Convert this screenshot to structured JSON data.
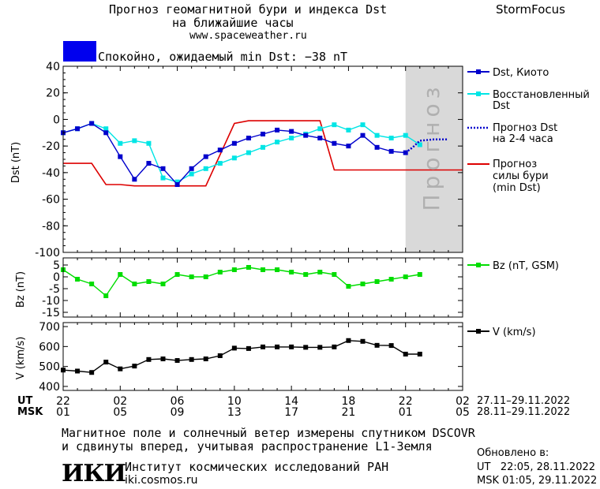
{
  "header": {
    "title_line1": "Прогноз геомагнитной бури и индекса Dst",
    "title_line2": "на ближайшие часы",
    "url": "www.spaceweather.ru",
    "brand": "StormFocus"
  },
  "status": {
    "text": "Спокойно, ожидаемый min Dst: −38 nT",
    "color": "#0000ee"
  },
  "legend": {
    "dst_kyoto": "Dst, Киото",
    "restored_l1": "Восстановленный",
    "restored_l2": "Dst",
    "forecast_l1": "Прогноз Dst",
    "forecast_l2": "на 2-4 часа",
    "storm_l1": "Прогноз",
    "storm_l2": "силы бури",
    "storm_l3": "(min Dst)",
    "bz": "Bz (nT, GSM)",
    "v": "V (km/s)"
  },
  "forecast_label": "Прогноз",
  "axes": {
    "dst_ylabel": "Dst (nT)",
    "bz_ylabel": "Bz (nT)",
    "v_ylabel": "V (km/s)",
    "dst_ticks": [
      40,
      20,
      0,
      -20,
      -40,
      -60,
      -80,
      -100
    ],
    "bz_ticks": [
      5,
      0,
      -5,
      -10,
      -15
    ],
    "v_ticks": [
      700,
      600,
      500,
      400
    ],
    "ut_label": "UT",
    "msk_label": "MSK",
    "ut_ticks": [
      "22",
      "02",
      "06",
      "10",
      "14",
      "18",
      "22",
      "02"
    ],
    "msk_ticks": [
      "01",
      "05",
      "09",
      "13",
      "17",
      "21",
      "01",
      "05"
    ],
    "ut_range": "27.11–29.11.2022",
    "msk_range": "28.11–29.11.2022"
  },
  "footer": {
    "note_line1": "Магнитное поле и солнечный ветер измерены спутником DSCOVR",
    "note_line2": "и сдвинуты вперед, учитывая распространение L1-Земля",
    "logo": "ИКИ",
    "institute": "Институт космических исследований РАН",
    "site": "iki.cosmos.ru",
    "updated_label": "Обновлено в:",
    "updated_ut": "UT   22:05, 28.11.2022",
    "updated_msk": "MSK 01:05, 29.11.2022"
  },
  "chart_data": {
    "type": "line",
    "x_unit": "hours since 22 UT",
    "x_range": [
      0,
      28
    ],
    "forecast_start": 24,
    "dst_ylim": [
      -100,
      40
    ],
    "bz_ylim": [
      -17,
      8
    ],
    "v_ylim": [
      380,
      720
    ],
    "colors": {
      "dst_kyoto": "#0000cc",
      "restored": "#00e5e5",
      "forecast": "#0000cc",
      "storm": "#dd0000",
      "bz": "#00dd00",
      "v": "#000000",
      "forecast_bg": "#d9d9d9"
    },
    "series": [
      {
        "name": "Dst, Киото",
        "x": [
          0,
          1,
          2,
          3,
          4,
          5,
          6,
          7,
          8,
          9,
          10,
          11,
          12,
          13,
          14,
          15,
          16,
          17,
          18,
          19,
          20,
          21,
          22,
          23,
          24
        ],
        "y": [
          -10,
          -7,
          -3,
          -10,
          -28,
          -45,
          -33,
          -37,
          -49,
          -37,
          -28,
          -23,
          -18,
          -14,
          -11,
          -8,
          -9,
          -12,
          -14,
          -18,
          -20,
          -12,
          -21,
          -24,
          -25
        ]
      },
      {
        "name": "Восстановленный Dst",
        "x": [
          0,
          1,
          2,
          3,
          4,
          5,
          6,
          7,
          8,
          9,
          10,
          11,
          12,
          13,
          14,
          15,
          16,
          17,
          18,
          19,
          20,
          21,
          22,
          23,
          24,
          25
        ],
        "y": [
          -10,
          -7,
          -3,
          -7,
          -18,
          -16,
          -18,
          -44,
          -47,
          -41,
          -37,
          -33,
          -29,
          -25,
          -21,
          -17,
          -14,
          -11,
          -7,
          -4,
          -8,
          -4,
          -12,
          -14,
          -12,
          -19
        ]
      },
      {
        "name": "Прогноз Dst на 2-4 часа",
        "x": [
          24,
          24.5,
          25,
          26,
          27
        ],
        "y": [
          -25,
          -21,
          -16,
          -15,
          -15
        ]
      },
      {
        "name": "Прогноз силы бури (min Dst)",
        "x": [
          0,
          2,
          3,
          4,
          5,
          10,
          12,
          13,
          14,
          18,
          19,
          28
        ],
        "y": [
          -33,
          -33,
          -49,
          -49,
          -50,
          -50,
          -3,
          -1,
          -1,
          -1,
          -38,
          -38
        ]
      },
      {
        "name": "Bz (nT, GSM)",
        "x": [
          0,
          1,
          2,
          3,
          4,
          5,
          6,
          7,
          8,
          9,
          10,
          11,
          12,
          13,
          14,
          15,
          16,
          17,
          18,
          19,
          20,
          21,
          22,
          23,
          24,
          25
        ],
        "y": [
          3,
          -1,
          -3,
          -8,
          1,
          -3,
          -2,
          -3,
          1,
          0,
          0,
          2,
          3,
          4,
          3,
          3,
          2,
          1,
          2,
          1,
          -4,
          -3,
          -2,
          -1,
          0,
          1
        ]
      },
      {
        "name": "V (km/s)",
        "x": [
          0,
          1,
          2,
          3,
          4,
          5,
          6,
          7,
          8,
          9,
          10,
          11,
          12,
          13,
          14,
          15,
          16,
          17,
          18,
          19,
          20,
          21,
          22,
          23,
          24,
          25
        ],
        "y": [
          482,
          477,
          470,
          522,
          488,
          502,
          535,
          538,
          530,
          535,
          538,
          554,
          592,
          590,
          598,
          598,
          598,
          596,
          596,
          598,
          630,
          626,
          606,
          605,
          562,
          562
        ]
      }
    ]
  }
}
